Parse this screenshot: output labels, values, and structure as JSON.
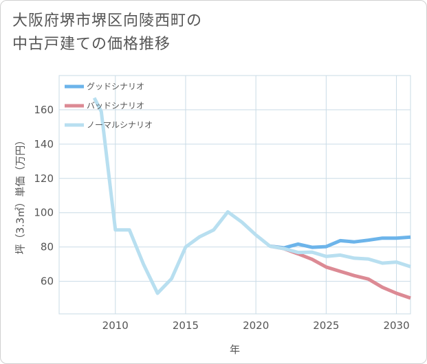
{
  "title": {
    "line1": "大阪府堺市堺区向陵西町の",
    "line2": "中古戸建ての価格推移"
  },
  "colors": {
    "good": "#6cb4ea",
    "bad": "#dc8a94",
    "normal": "#b8dff0",
    "grid": "#c9dbe6",
    "text": "#555555"
  },
  "chart_data": {
    "type": "line",
    "xlabel": "年",
    "ylabel": "坪（3.3㎡）単価（万円）",
    "xlim": [
      2006,
      2031
    ],
    "ylim": [
      41,
      180
    ],
    "xticks": [
      2010,
      2015,
      2020,
      2025,
      2030
    ],
    "yticks": [
      60,
      80,
      100,
      120,
      140,
      160
    ],
    "grid": true,
    "legend_position": "top-left",
    "series": [
      {
        "name": "グッドシナリオ",
        "key": "good",
        "x": [
          2021,
          2022,
          2023,
          2024,
          2025,
          2026,
          2027,
          2028,
          2029,
          2030,
          2031
        ],
        "y": [
          80.5,
          79.5,
          81.7,
          79.8,
          80.2,
          83.7,
          83,
          84,
          85.2,
          85.2,
          85.8
        ]
      },
      {
        "name": "バッドシナリオ",
        "key": "bad",
        "x": [
          2021,
          2022,
          2023,
          2024,
          2025,
          2026,
          2027,
          2028,
          2029,
          2030,
          2031
        ],
        "y": [
          80.5,
          79,
          76,
          72.8,
          68.3,
          65.8,
          63.3,
          61.3,
          56.5,
          53,
          50.2
        ]
      },
      {
        "name": "ノーマルシナリオ",
        "key": "normal",
        "x": [
          2008.5,
          2009,
          2010,
          2011,
          2012,
          2013,
          2014,
          2015,
          2016,
          2017,
          2018,
          2019,
          2020,
          2021,
          2022,
          2023,
          2024,
          2025,
          2026,
          2027,
          2028,
          2029,
          2030,
          2031
        ],
        "y": [
          167,
          159,
          90,
          90,
          70,
          53,
          61.5,
          80,
          86,
          90,
          100.5,
          94.5,
          87,
          80.5,
          79,
          76.8,
          77,
          74.5,
          75.3,
          73.5,
          73,
          70.6,
          71.2,
          68.5
        ]
      }
    ]
  }
}
